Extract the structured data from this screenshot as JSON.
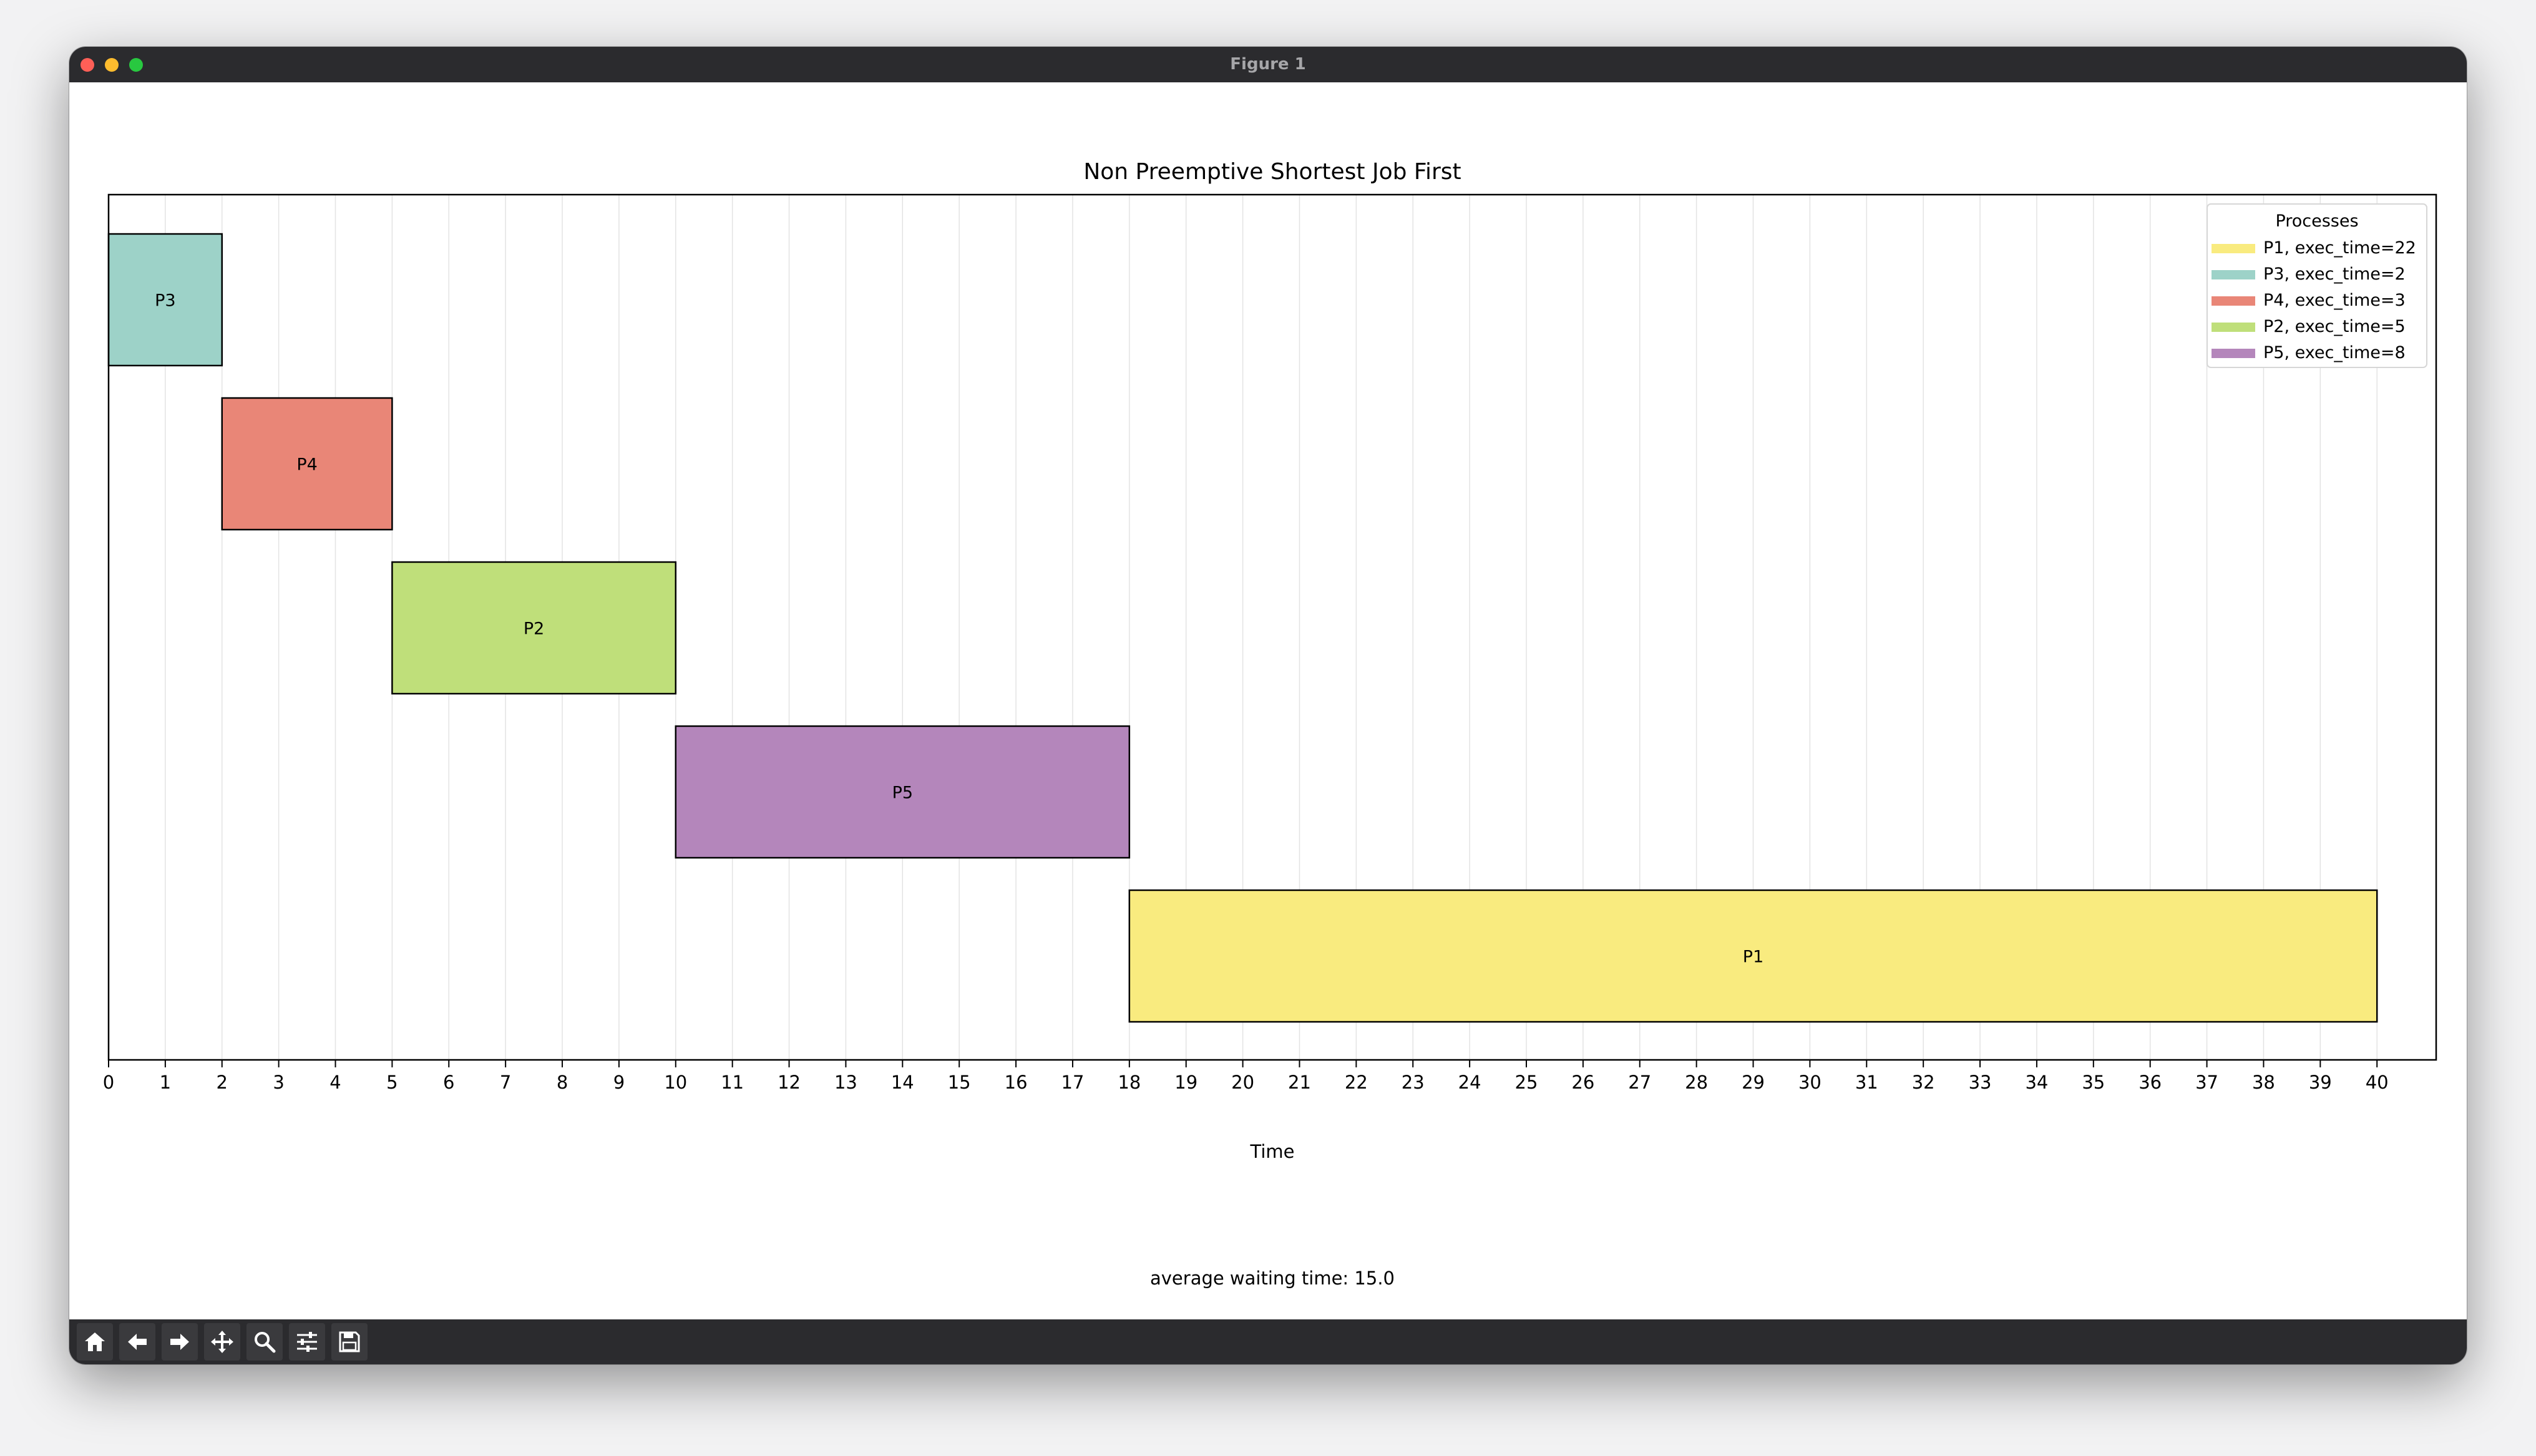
{
  "window": {
    "title": "Figure 1"
  },
  "toolbar": {
    "buttons": [
      {
        "name": "home",
        "icon": "home-icon"
      },
      {
        "name": "back",
        "icon": "arrow-left-icon"
      },
      {
        "name": "forward",
        "icon": "arrow-right-icon"
      },
      {
        "name": "pan",
        "icon": "move-icon"
      },
      {
        "name": "zoom",
        "icon": "magnifier-icon"
      },
      {
        "name": "configure-subplots",
        "icon": "sliders-icon"
      },
      {
        "name": "save",
        "icon": "floppy-disk-icon"
      }
    ]
  },
  "chart_data": {
    "type": "gantt",
    "title": "Non Preemptive Shortest Job First",
    "xlabel": "Time",
    "xlim": [
      0,
      41
    ],
    "xticks": [
      0,
      1,
      2,
      3,
      4,
      5,
      6,
      7,
      8,
      9,
      10,
      11,
      12,
      13,
      14,
      15,
      16,
      17,
      18,
      19,
      20,
      21,
      22,
      23,
      24,
      25,
      26,
      27,
      28,
      29,
      30,
      31,
      32,
      33,
      34,
      35,
      36,
      37,
      38,
      39,
      40
    ],
    "grid": "vertical",
    "legend": {
      "title": "Processes",
      "placement": "top-right",
      "entries": [
        {
          "label": "P1, exec_time=22",
          "color": "#f9eb7f"
        },
        {
          "label": "P3, exec_time=2",
          "color": "#9dd2c8"
        },
        {
          "label": "P4, exec_time=3",
          "color": "#e98677"
        },
        {
          "label": "P2, exec_time=5",
          "color": "#bfdf7a"
        },
        {
          "label": "P5, exec_time=8",
          "color": "#b486bb"
        }
      ]
    },
    "bars": [
      {
        "process": "P3",
        "start": 0,
        "end": 2,
        "color": "#9dd2c8"
      },
      {
        "process": "P4",
        "start": 2,
        "end": 5,
        "color": "#e98677"
      },
      {
        "process": "P2",
        "start": 5,
        "end": 10,
        "color": "#bfdf7a"
      },
      {
        "process": "P5",
        "start": 10,
        "end": 18,
        "color": "#b486bb"
      },
      {
        "process": "P1",
        "start": 18,
        "end": 40,
        "color": "#f9eb7f"
      }
    ],
    "footer_text": "average waiting time: 15.0"
  }
}
